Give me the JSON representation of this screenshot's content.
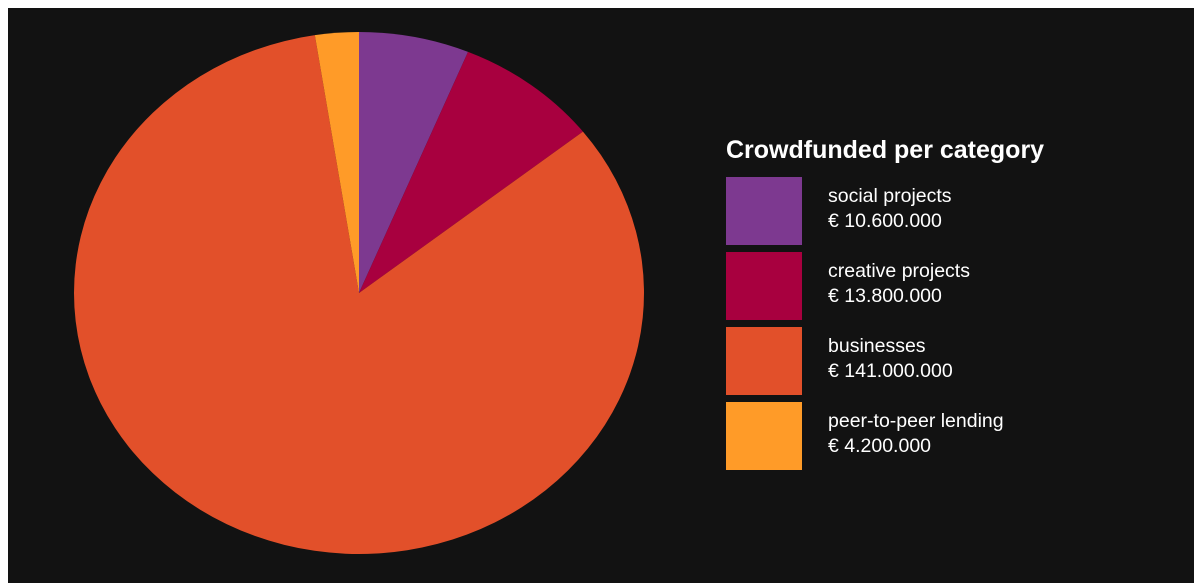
{
  "chart_data": {
    "type": "pie",
    "title": "Crowdfunded per category",
    "currency": "€",
    "start_angle_deg": 0,
    "direction": "clockwise",
    "slices": [
      {
        "label": "social projects",
        "value": 10600000,
        "display_value": "€ 10.600.000",
        "color": "#7d3990"
      },
      {
        "label": "creative projects",
        "value": 13800000,
        "display_value": "€ 13.800.000",
        "color": "#a8003f"
      },
      {
        "label": "businesses",
        "value": 141000000,
        "display_value": "€ 141.000.000",
        "color": "#e2502a"
      },
      {
        "label": "peer-to-peer lending",
        "value": 4200000,
        "display_value": "€ 4.200.000",
        "color": "#ff9b28"
      }
    ],
    "legend_position": "right"
  },
  "colors": {
    "background": "#121212",
    "text": "#ffffff"
  }
}
